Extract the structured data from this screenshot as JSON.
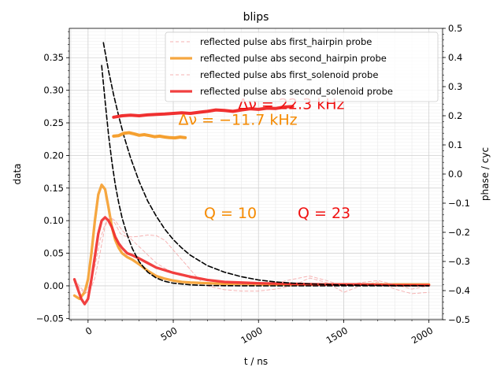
{
  "chart_data": {
    "type": "line",
    "title": "blips",
    "xlabel": "t / ns",
    "ylabel": "data",
    "y2label": "phase / cyc",
    "xlim": [
      -110,
      2080
    ],
    "ylim": [
      -0.052,
      0.395
    ],
    "y2lim": [
      -0.5,
      0.5
    ],
    "xticks": [
      0,
      500,
      1000,
      1500,
      2000
    ],
    "yticks": [
      -0.05,
      0.0,
      0.05,
      0.1,
      0.15,
      0.2,
      0.25,
      0.3,
      0.35
    ],
    "ytick_labels": [
      "−0.05",
      "0.00",
      "0.05",
      "0.10",
      "0.15",
      "0.20",
      "0.25",
      "0.30",
      "0.35"
    ],
    "y2ticks": [
      -0.5,
      -0.4,
      -0.3,
      -0.2,
      -0.1,
      0.0,
      0.1,
      0.2,
      0.3,
      0.4,
      0.5
    ],
    "y2tick_labels": [
      "−0.5",
      "−0.4",
      "−0.3",
      "−0.2",
      "−0.1",
      "0.0",
      "0.1",
      "0.2",
      "0.3",
      "0.4",
      "0.5"
    ],
    "grid": true,
    "legend_position": "top-right",
    "series": [
      {
        "name": "reflected pulse abs first_hairpin probe",
        "color": "#f4a6a6",
        "style": "dashed-thin",
        "axis": "left",
        "x": [
          -80,
          -50,
          -20,
          10,
          40,
          70,
          100,
          130,
          160,
          190,
          220,
          260,
          300,
          350,
          400,
          450,
          500,
          550,
          600,
          650,
          700,
          800,
          900,
          1000,
          1100,
          1200,
          1300,
          1400,
          1500,
          1600,
          1700,
          1800,
          1900,
          2000
        ],
        "y": [
          0.006,
          -0.003,
          -0.012,
          -0.008,
          0.012,
          0.05,
          0.092,
          0.105,
          0.095,
          0.08,
          0.076,
          0.075,
          0.076,
          0.078,
          0.077,
          0.07,
          0.055,
          0.04,
          0.025,
          0.01,
          0.0,
          -0.006,
          -0.008,
          -0.008,
          -0.005,
          0.0,
          0.012,
          0.005,
          -0.01,
          0.0,
          0.006,
          -0.005,
          -0.012,
          -0.01
        ]
      },
      {
        "name": "reflected pulse abs second_hairpin probe",
        "color": "#f5a030",
        "style": "solid-thick",
        "axis": "left",
        "x": [
          -80,
          -50,
          -20,
          0,
          20,
          40,
          60,
          80,
          100,
          120,
          140,
          160,
          180,
          200,
          230,
          260,
          300,
          350,
          400,
          450,
          500,
          550,
          600,
          700,
          800,
          900,
          1000,
          1100,
          1200,
          1300,
          1400,
          1500,
          1600,
          1700,
          1800,
          1900,
          2000
        ],
        "y": [
          -0.015,
          -0.02,
          -0.01,
          0.01,
          0.05,
          0.1,
          0.14,
          0.155,
          0.148,
          0.12,
          0.09,
          0.07,
          0.058,
          0.05,
          0.044,
          0.04,
          0.033,
          0.023,
          0.015,
          0.011,
          0.008,
          0.006,
          0.005,
          0.004,
          0.003,
          0.003,
          0.002,
          0.002,
          0.002,
          0.002,
          0.002,
          0.002,
          0.002,
          0.002,
          0.002,
          0.002,
          0.002
        ]
      },
      {
        "name": "reflected pulse abs first_solenoid probe",
        "color": "#f4a6a6",
        "style": "dashed-thin",
        "axis": "left",
        "x": [
          -80,
          -50,
          -20,
          10,
          40,
          70,
          100,
          130,
          160,
          200,
          240,
          280,
          320,
          360,
          400,
          450,
          500,
          600,
          700,
          800,
          900,
          1000,
          1100,
          1200,
          1300,
          1400,
          1500,
          1600,
          1700,
          1800,
          1900,
          2000
        ],
        "y": [
          0.01,
          0.0,
          -0.01,
          0.0,
          0.03,
          0.07,
          0.095,
          0.105,
          0.1,
          0.085,
          0.075,
          0.065,
          0.055,
          0.045,
          0.035,
          0.027,
          0.02,
          0.012,
          0.008,
          0.005,
          0.003,
          0.002,
          0.004,
          0.01,
          0.015,
          0.008,
          0.0,
          0.005,
          0.008,
          0.002,
          -0.005,
          0.0
        ]
      },
      {
        "name": "reflected pulse abs second_solenoid probe",
        "color": "#f03030",
        "style": "solid-thick",
        "axis": "left",
        "x": [
          -80,
          -60,
          -40,
          -20,
          0,
          20,
          40,
          60,
          80,
          100,
          120,
          140,
          160,
          180,
          200,
          230,
          260,
          300,
          350,
          400,
          450,
          500,
          600,
          700,
          800,
          900,
          1000,
          1200,
          1400,
          1600,
          1800,
          2000
        ],
        "y": [
          0.01,
          -0.005,
          -0.02,
          -0.028,
          -0.02,
          0.01,
          0.045,
          0.08,
          0.1,
          0.105,
          0.1,
          0.09,
          0.075,
          0.065,
          0.058,
          0.05,
          0.047,
          0.042,
          0.035,
          0.028,
          0.024,
          0.02,
          0.014,
          0.009,
          0.006,
          0.005,
          0.004,
          0.003,
          0.002,
          0.002,
          0.001,
          0.001
        ]
      },
      {
        "name": "",
        "color": "#000000",
        "style": "dashed-black",
        "axis": "left",
        "x": [
          80,
          100,
          120,
          140,
          160,
          180,
          200,
          230,
          260,
          300,
          350,
          400,
          450,
          500,
          600,
          700,
          800,
          900,
          1000,
          1200,
          1400,
          1600,
          1800,
          2000
        ],
        "y": [
          0.338,
          0.283,
          0.232,
          0.19,
          0.155,
          0.127,
          0.104,
          0.078,
          0.057,
          0.037,
          0.021,
          0.012,
          0.007,
          0.004,
          0.0015,
          0.0006,
          0.0002,
          0.0001,
          0.0,
          0.0,
          0.0,
          0.0,
          0.0,
          0.0
        ]
      },
      {
        "name": "",
        "color": "#000000",
        "style": "dashed-black",
        "axis": "left",
        "x": [
          90,
          120,
          150,
          180,
          210,
          250,
          300,
          350,
          400,
          450,
          500,
          550,
          600,
          700,
          800,
          900,
          1000,
          1100,
          1200,
          1300,
          1400,
          1500,
          1600,
          1800,
          2000
        ],
        "y": [
          0.373,
          0.33,
          0.293,
          0.26,
          0.23,
          0.196,
          0.16,
          0.13,
          0.107,
          0.087,
          0.071,
          0.058,
          0.047,
          0.031,
          0.021,
          0.014,
          0.009,
          0.006,
          0.004,
          0.003,
          0.002,
          0.0013,
          0.0009,
          0.0004,
          0.0002
        ]
      },
      {
        "name": "",
        "color": "#f5a030",
        "style": "phase",
        "axis": "right",
        "x": [
          150,
          180,
          210,
          240,
          270,
          300,
          330,
          360,
          390,
          420,
          450,
          480,
          510,
          540,
          570
        ],
        "y": [
          0.13,
          0.132,
          0.14,
          0.142,
          0.138,
          0.133,
          0.135,
          0.132,
          0.128,
          0.13,
          0.127,
          0.125,
          0.124,
          0.127,
          0.125
        ]
      },
      {
        "name": "",
        "color": "#f03030",
        "style": "phase",
        "axis": "right",
        "x": [
          150,
          200,
          250,
          300,
          350,
          400,
          450,
          500,
          550,
          600,
          650,
          700,
          750,
          800,
          850,
          900,
          950,
          1000,
          1050,
          1100,
          1150,
          1200
        ],
        "y": [
          0.195,
          0.2,
          0.202,
          0.2,
          0.203,
          0.205,
          0.206,
          0.208,
          0.21,
          0.208,
          0.212,
          0.215,
          0.22,
          0.218,
          0.215,
          0.22,
          0.224,
          0.222,
          0.226,
          0.225,
          0.23,
          0.232
        ]
      }
    ],
    "annotations": [
      {
        "text": "Δν = 22.3 kHz",
        "color": "#f01010",
        "x": 880,
        "y": 0.271
      },
      {
        "text": "Δν = −11.7 kHz",
        "color": "#f58a00",
        "x": 530,
        "y": 0.247
      },
      {
        "text": "Q = 10",
        "color": "#f58a00",
        "x": 680,
        "y": 0.104
      },
      {
        "text": "Q = 23",
        "color": "#f01010",
        "x": 1230,
        "y": 0.104
      }
    ]
  }
}
